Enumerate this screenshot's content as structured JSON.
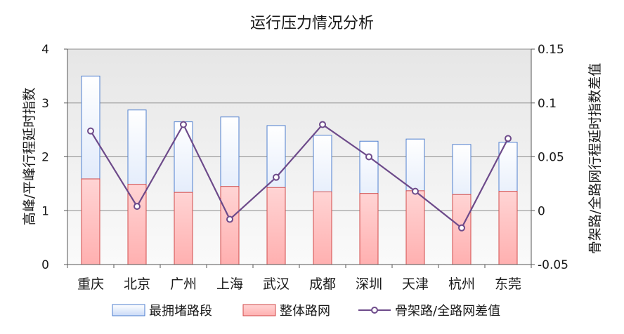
{
  "chart_data": {
    "type": "bar",
    "title": "运行压力情况分析",
    "categories": [
      "重庆",
      "北京",
      "广州",
      "上海",
      "武汉",
      "成都",
      "深圳",
      "天津",
      "杭州",
      "东莞"
    ],
    "ylabel": "高峰/平峰行程延时指数",
    "y2label": "骨架路/全路网行程延时指数差值",
    "ylim": [
      0,
      4
    ],
    "y2lim": [
      -0.05,
      0.15
    ],
    "yticks": [
      "0",
      "1",
      "2",
      "3",
      "4"
    ],
    "y2ticks": [
      "-0.05",
      "0",
      "0.05",
      "0.1",
      "0.15"
    ],
    "grid": true,
    "legend_position": "bottom",
    "series": [
      {
        "name": "最拥堵路段",
        "type": "bar",
        "axis": "left",
        "color_fill": "#dbe7fb",
        "color_edge": "#4f7fcf",
        "values": [
          3.5,
          2.87,
          2.65,
          2.74,
          2.58,
          2.4,
          2.29,
          2.33,
          2.23,
          2.27
        ]
      },
      {
        "name": "整体路网",
        "type": "bar",
        "axis": "left",
        "color_fill": "#ffc9c9",
        "color_edge": "#d24b4b",
        "values": [
          1.59,
          1.49,
          1.34,
          1.45,
          1.43,
          1.35,
          1.32,
          1.37,
          1.3,
          1.36
        ]
      },
      {
        "name": "骨架路/全路网差值",
        "type": "line",
        "axis": "right",
        "color": "#6d4a8a",
        "values": [
          0.074,
          0.004,
          0.08,
          -0.008,
          0.031,
          0.08,
          0.05,
          0.018,
          -0.016,
          0.067
        ]
      }
    ]
  }
}
